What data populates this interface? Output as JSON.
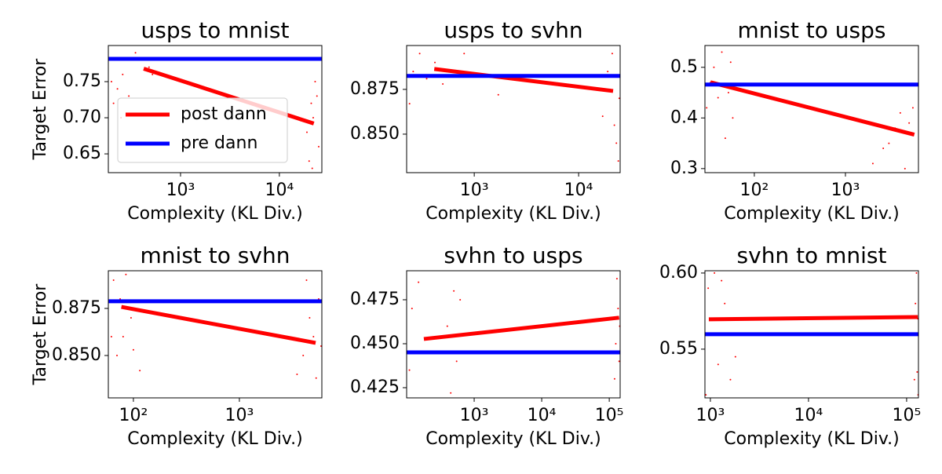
{
  "chart_data": [
    {
      "type": "line",
      "title": "usps to mnist",
      "xlabel": "Complexity (KL Div.)",
      "ylabel": "Target Error",
      "xscale": "log",
      "xlim": [
        186,
        26900
      ],
      "xticks": [
        {
          "value": 1000,
          "label": "10³"
        },
        {
          "value": 10000,
          "label": "10⁴"
        }
      ],
      "ylim": [
        0.624,
        0.8
      ],
      "yticks": [
        0.65,
        {
          "value": 0.7,
          "label": "0.70"
        },
        0.75
      ],
      "legend": "lower left",
      "series": [
        {
          "name": "post dann",
          "color": "#ff0000",
          "x": [
            424,
            22300
          ],
          "values": [
            0.768,
            0.692
          ]
        },
        {
          "name": "pre dann",
          "color": "#0000ff",
          "values": [
            0.7815
          ]
        }
      ],
      "scatter": {
        "color": "#ff0000",
        "x": [
          210,
          230,
          260,
          300,
          350,
          420,
          480,
          520,
          250,
          200,
          19000,
          20000,
          21000,
          22000,
          23000,
          24000,
          25000,
          21500
        ],
        "values": [
          0.72,
          0.74,
          0.76,
          0.73,
          0.79,
          0.78,
          0.77,
          0.76,
          0.7,
          0.75,
          0.68,
          0.64,
          0.72,
          0.7,
          0.75,
          0.73,
          0.66,
          0.63
        ]
      }
    },
    {
      "type": "line",
      "title": "usps to svhn",
      "xlabel": "Complexity (KL Div.)",
      "xscale": "log",
      "xlim": [
        225,
        25000
      ],
      "xticks": [
        {
          "value": 1000,
          "label": "10³"
        },
        {
          "value": 10000,
          "label": "10⁴"
        }
      ],
      "ylim": [
        0.8285,
        0.8995
      ],
      "yticks": [
        {
          "value": 0.85,
          "label": "0.850"
        },
        0.875
      ],
      "series": [
        {
          "name": "post dann",
          "color": "#ff0000",
          "x": [
            414,
            21400
          ],
          "values": [
            0.8864,
            0.8741
          ]
        },
        {
          "name": "pre dann",
          "color": "#0000ff",
          "values": [
            0.8825
          ]
        }
      ],
      "scatter": {
        "color": "#ff0000",
        "x": [
          240,
          260,
          300,
          350,
          420,
          500,
          600,
          1700,
          800,
          17000,
          19000,
          20000,
          21000,
          22000,
          23000,
          24000,
          24500
        ],
        "values": [
          0.867,
          0.885,
          0.895,
          0.881,
          0.89,
          0.878,
          0.885,
          0.872,
          0.895,
          0.86,
          0.885,
          0.875,
          0.895,
          0.855,
          0.845,
          0.835,
          0.87
        ]
      }
    },
    {
      "type": "line",
      "title": "mnist to usps",
      "xlabel": "Complexity (KL Div.)",
      "xscale": "log",
      "xlim": [
        28.7,
        6330
      ],
      "xticks": [
        {
          "value": 100,
          "label": "10²"
        },
        {
          "value": 1000,
          "label": "10³"
        }
      ],
      "ylim": [
        0.292,
        0.543
      ],
      "yticks": [
        0.3,
        0.4,
        0.5
      ],
      "series": [
        {
          "name": "post dann",
          "color": "#ff0000",
          "x": [
            33,
            5700
          ],
          "values": [
            0.4705,
            0.367
          ]
        },
        {
          "name": "pre dann",
          "color": "#0000ff",
          "values": [
            0.466
          ]
        }
      ],
      "scatter": {
        "color": "#ff0000",
        "x": [
          30,
          33,
          36,
          40,
          44,
          48,
          52,
          55,
          58,
          2000,
          2600,
          3000,
          3500,
          4000,
          4500,
          5000,
          5500
        ],
        "values": [
          0.42,
          0.47,
          0.5,
          0.44,
          0.53,
          0.36,
          0.45,
          0.51,
          0.4,
          0.31,
          0.34,
          0.35,
          0.38,
          0.41,
          0.3,
          0.39,
          0.42
        ]
      }
    },
    {
      "type": "line",
      "title": "mnist to svhn",
      "xlabel": "Complexity (KL Div.)",
      "ylabel": "Target Error",
      "xscale": "log",
      "xlim": [
        58,
        6000
      ],
      "xticks": [
        {
          "value": 100,
          "label": "10²"
        },
        {
          "value": 1000,
          "label": "10³"
        }
      ],
      "ylim": [
        0.8275,
        0.895
      ],
      "yticks": [
        {
          "value": 0.85,
          "label": "0.850"
        },
        0.875
      ],
      "series": [
        {
          "name": "post dann",
          "color": "#ff0000",
          "x": [
            77,
            5240
          ],
          "values": [
            0.8758,
            0.8567
          ]
        },
        {
          "name": "pre dann",
          "color": "#0000ff",
          "values": [
            0.8788
          ]
        }
      ],
      "scatter": {
        "color": "#ff0000",
        "x": [
          62,
          65,
          70,
          75,
          80,
          85,
          95,
          100,
          115,
          3500,
          4000,
          4300,
          4600,
          5000,
          5300,
          5600,
          5900
        ],
        "values": [
          0.86,
          0.89,
          0.85,
          0.88,
          0.86,
          0.893,
          0.87,
          0.853,
          0.842,
          0.84,
          0.85,
          0.89,
          0.87,
          0.86,
          0.838,
          0.88,
          0.855
        ]
      }
    },
    {
      "type": "line",
      "title": "svhn to usps",
      "xlabel": "Complexity (KL Div.)",
      "xscale": "log",
      "xlim": [
        100,
        145000
      ],
      "xticks": [
        {
          "value": 1000,
          "label": "10³"
        },
        {
          "value": 10000,
          "label": "10⁴"
        },
        {
          "value": 100000,
          "label": "10⁵"
        }
      ],
      "ylim": [
        0.4192,
        0.4915
      ],
      "yticks": [
        0.425,
        {
          "value": 0.45,
          "label": "0.450"
        },
        0.475
      ],
      "series": [
        {
          "name": "post dann",
          "color": "#ff0000",
          "x": [
            180,
            140000
          ],
          "values": [
            0.4527,
            0.4648
          ]
        },
        {
          "name": "pre dann",
          "color": "#0000ff",
          "values": [
            0.4451
          ]
        }
      ],
      "scatter": {
        "color": "#ff0000",
        "x": [
          110,
          120,
          150,
          300,
          400,
          450,
          500,
          550,
          620,
          700,
          120000,
          125000,
          130000,
          135000,
          140000,
          143000
        ],
        "values": [
          0.435,
          0.47,
          0.485,
          0.445,
          0.46,
          0.422,
          0.48,
          0.44,
          0.475,
          0.455,
          0.43,
          0.45,
          0.487,
          0.47,
          0.44,
          0.46
        ]
      }
    },
    {
      "type": "line",
      "title": "svhn to mnist",
      "xlabel": "Complexity (KL Div.)",
      "xscale": "log",
      "xlim": [
        880,
        132000
      ],
      "xticks": [
        {
          "value": 1000,
          "label": "10³"
        },
        {
          "value": 10000,
          "label": "10⁴"
        },
        {
          "value": 100000,
          "label": "10⁵"
        }
      ],
      "ylim": [
        0.518,
        0.6015
      ],
      "yticks": [
        0.55,
        {
          "value": 0.6,
          "label": "0.60"
        }
      ],
      "series": [
        {
          "name": "post dann",
          "color": "#ff0000",
          "x": [
            964,
            130000
          ],
          "values": [
            0.5696,
            0.5711
          ]
        },
        {
          "name": "pre dann",
          "color": "#0000ff",
          "values": [
            0.5598
          ]
        }
      ],
      "scatter": {
        "color": "#ff0000",
        "x": [
          900,
          950,
          1000,
          1100,
          1200,
          1400,
          1600,
          1800,
          1300,
          120000,
          123000,
          126000,
          128000,
          130000,
          131000
        ],
        "values": [
          0.52,
          0.59,
          0.57,
          0.6,
          0.54,
          0.58,
          0.53,
          0.545,
          0.595,
          0.53,
          0.58,
          0.6,
          0.535,
          0.57,
          0.52
        ]
      }
    }
  ]
}
